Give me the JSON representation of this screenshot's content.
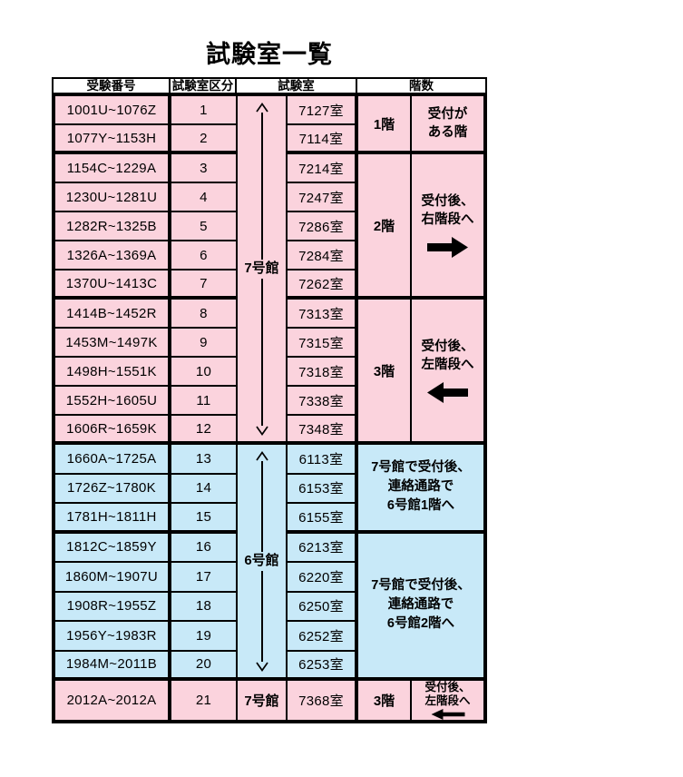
{
  "title": "試験室一覧",
  "colors": {
    "pink": "#FBD3DD",
    "blue": "#C8E9F8",
    "line": "#000000"
  },
  "header": {
    "number": "受験番号",
    "section": "試験室区分",
    "room": "試験室",
    "floor": "階数"
  },
  "rows": [
    {
      "range": "1001U~1076Z",
      "section": "1",
      "room": "7127室"
    },
    {
      "range": "1077Y~1153H",
      "section": "2",
      "room": "7114室"
    },
    {
      "range": "1154C~1229A",
      "section": "3",
      "room": "7214室"
    },
    {
      "range": "1230U~1281U",
      "section": "4",
      "room": "7247室"
    },
    {
      "range": "1282R~1325B",
      "section": "5",
      "room": "7286室"
    },
    {
      "range": "1326A~1369A",
      "section": "6",
      "room": "7284室"
    },
    {
      "range": "1370U~1413C",
      "section": "7",
      "room": "7262室"
    },
    {
      "range": "1414B~1452R",
      "section": "8",
      "room": "7313室"
    },
    {
      "range": "1453M~1497K",
      "section": "9",
      "room": "7315室"
    },
    {
      "range": "1498H~1551K",
      "section": "10",
      "room": "7318室"
    },
    {
      "range": "1552H~1605U",
      "section": "11",
      "room": "7338室"
    },
    {
      "range": "1606R~1659K",
      "section": "12",
      "room": "7348室"
    },
    {
      "range": "1660A~1725A",
      "section": "13",
      "room": "6113室"
    },
    {
      "range": "1726Z~1780K",
      "section": "14",
      "room": "6153室"
    },
    {
      "range": "1781H~1811H",
      "section": "15",
      "room": "6155室"
    },
    {
      "range": "1812C~1859Y",
      "section": "16",
      "room": "6213室"
    },
    {
      "range": "1860M~1907U",
      "section": "17",
      "room": "6220室"
    },
    {
      "range": "1908R~1955Z",
      "section": "18",
      "room": "6250室"
    },
    {
      "range": "1956Y~1983R",
      "section": "19",
      "room": "6252室"
    },
    {
      "range": "1984M~2011B",
      "section": "20",
      "room": "6253室"
    },
    {
      "range": "2012A~2012A",
      "section": "21",
      "room": "7368室"
    }
  ],
  "buildings": {
    "bldg7": {
      "label": "7号館",
      "arrow": "double-vertical"
    },
    "bldg6": {
      "label": "6号館",
      "arrow": "double-vertical"
    },
    "bldg7_last": {
      "label": "7号館",
      "arrow": "none"
    }
  },
  "floor_groups": {
    "g1": {
      "floor": "1階",
      "note": "受付が\nある階",
      "arrow": "none"
    },
    "g2": {
      "floor": "2階",
      "note": "受付後、\n右階段へ",
      "arrow": "right"
    },
    "g3": {
      "floor": "3階",
      "note": "受付後、\n左階段へ",
      "arrow": "left"
    }
  },
  "transfer_notes": {
    "n1": {
      "text": "7号館で受付後、\n連絡通路で\n6号館1階へ"
    },
    "n2": {
      "text": "7号館で受付後、\n連絡通路で\n6号館2階へ"
    }
  },
  "last_row": {
    "floor": "3階",
    "note": "受付後、\n左階段へ",
    "arrow": "left"
  }
}
